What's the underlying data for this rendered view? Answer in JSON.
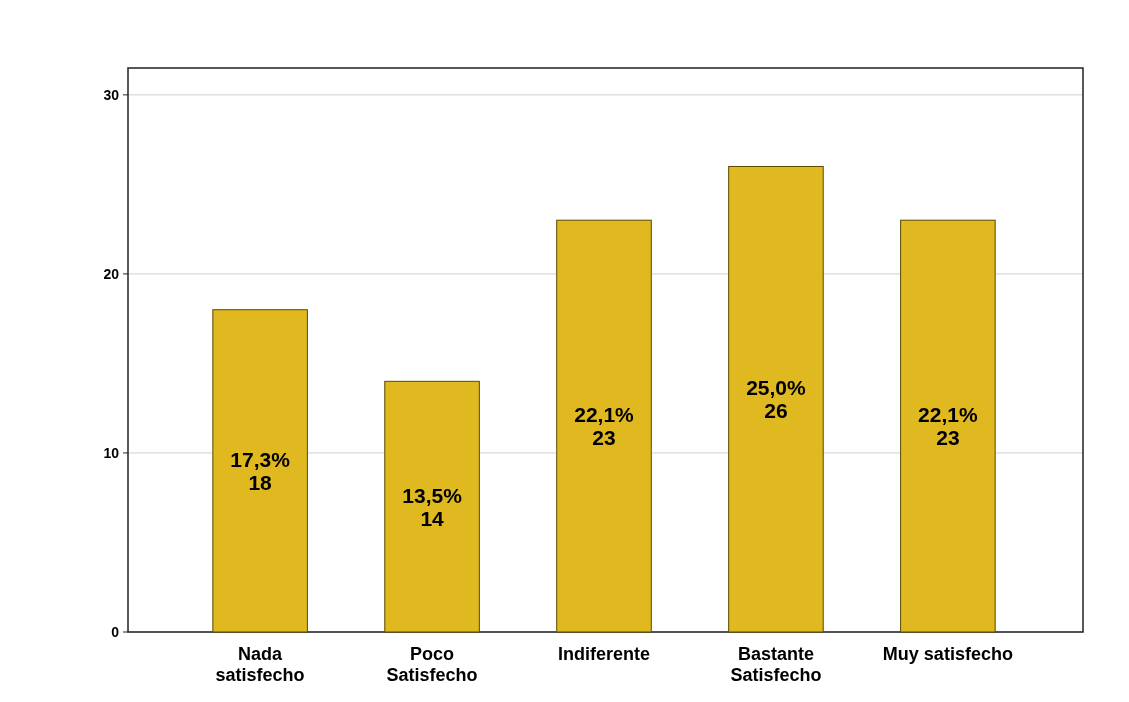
{
  "chart_data": {
    "type": "bar",
    "categories": [
      "Nada satisfecho",
      "Poco Satisfecho",
      "Indiferente",
      "Bastante Satisfecho",
      "Muy satisfecho"
    ],
    "values": [
      18,
      14,
      23,
      26,
      23
    ],
    "value_labels": [
      "17,3%\n18",
      "13,5%\n14",
      "22,1%\n23",
      "25,0%\n26",
      "22,1%\n23"
    ],
    "color": "#e0b820",
    "ylim": [
      0,
      31.5
    ],
    "yticks": [
      0,
      10,
      20,
      30
    ],
    "grid": "y"
  }
}
